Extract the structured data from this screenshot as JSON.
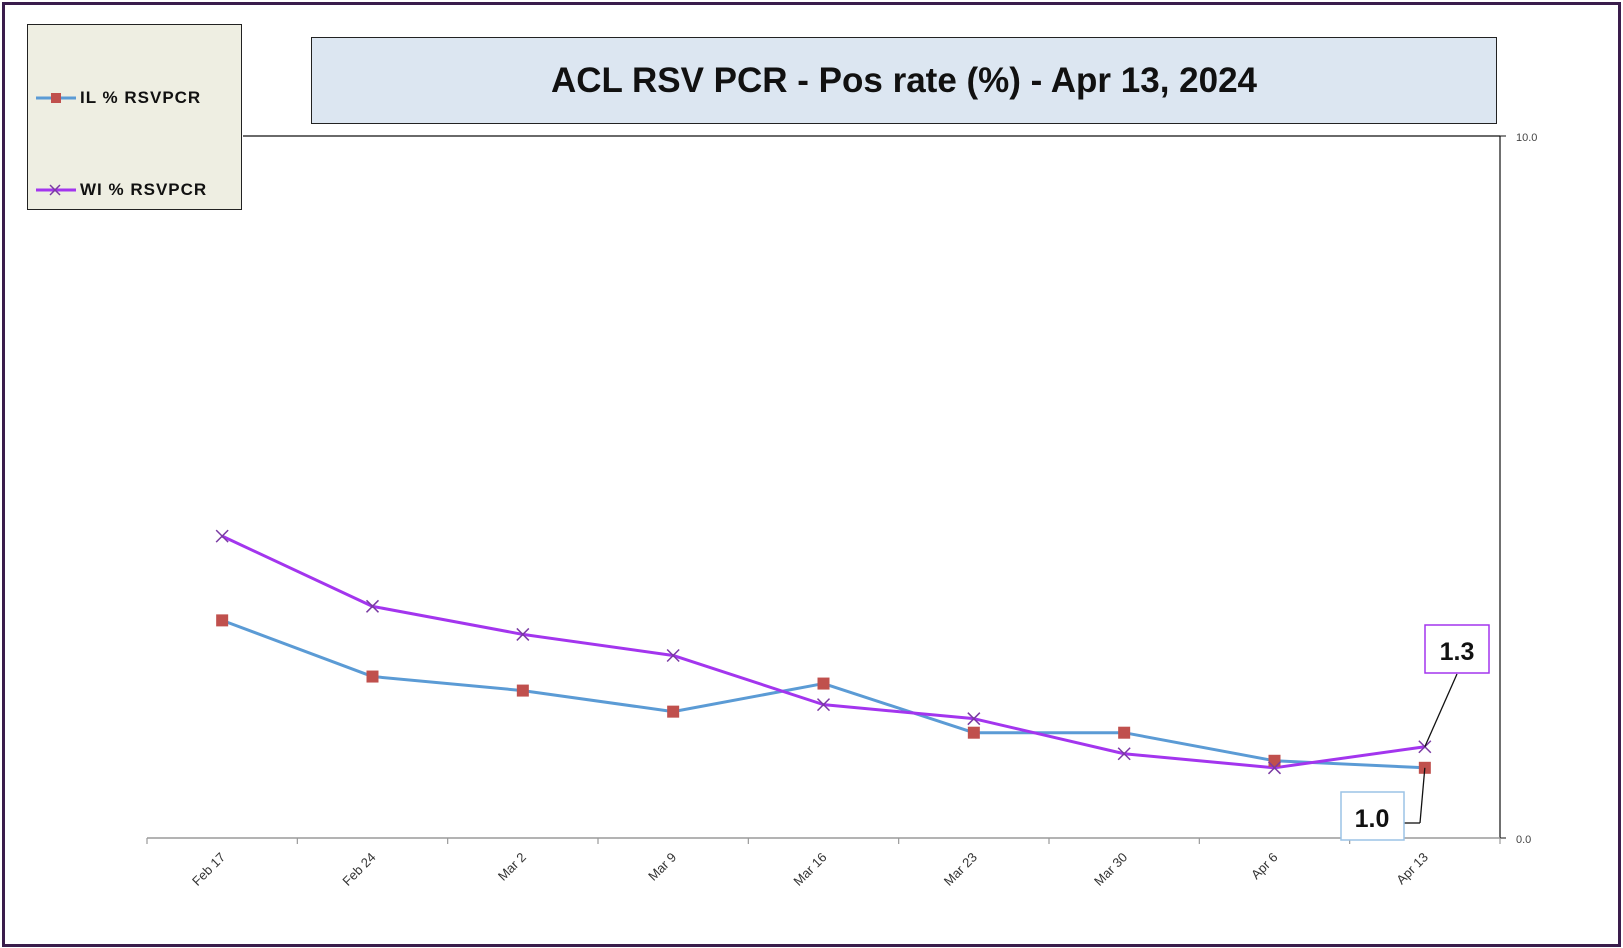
{
  "colors": {
    "frame": "#3a1d4c",
    "il_line": "#5b9bd5",
    "il_marker": "#c0504d",
    "wi_line": "#a335ee",
    "wi_marker": "#7a3aa3",
    "title_bg": "#dce6f1",
    "legend_bg": "#eeeee2"
  },
  "chart_data": {
    "type": "line",
    "title": "ACL RSV PCR - Pos rate (%) -  Apr 13, 2024",
    "categories": [
      "Feb 17",
      "Feb 24",
      "Mar 2",
      "Mar 9",
      "Mar 16",
      "Mar 23",
      "Mar 30",
      "Apr 6",
      "Apr 13"
    ],
    "series": [
      {
        "name": "IL % RSVPCR",
        "marker": "square",
        "values": [
          3.1,
          2.3,
          2.1,
          1.8,
          2.2,
          1.5,
          1.5,
          1.1,
          1.0
        ]
      },
      {
        "name": "WI % RSVPCR",
        "marker": "x",
        "values": [
          4.3,
          3.3,
          2.9,
          2.6,
          1.9,
          1.7,
          1.2,
          1.0,
          1.3
        ]
      }
    ],
    "y_axis": {
      "position": "right",
      "ylim": [
        0.0,
        10.0
      ],
      "tick_labels": [
        "0.0",
        "10.0"
      ]
    },
    "grid": false,
    "legend_placement": "top-left",
    "annotations": [
      {
        "series": "WI % RSVPCR",
        "category": "Apr 13",
        "text": "1.3"
      },
      {
        "series": "IL % RSVPCR",
        "category": "Apr 13",
        "text": "1.0"
      }
    ]
  }
}
